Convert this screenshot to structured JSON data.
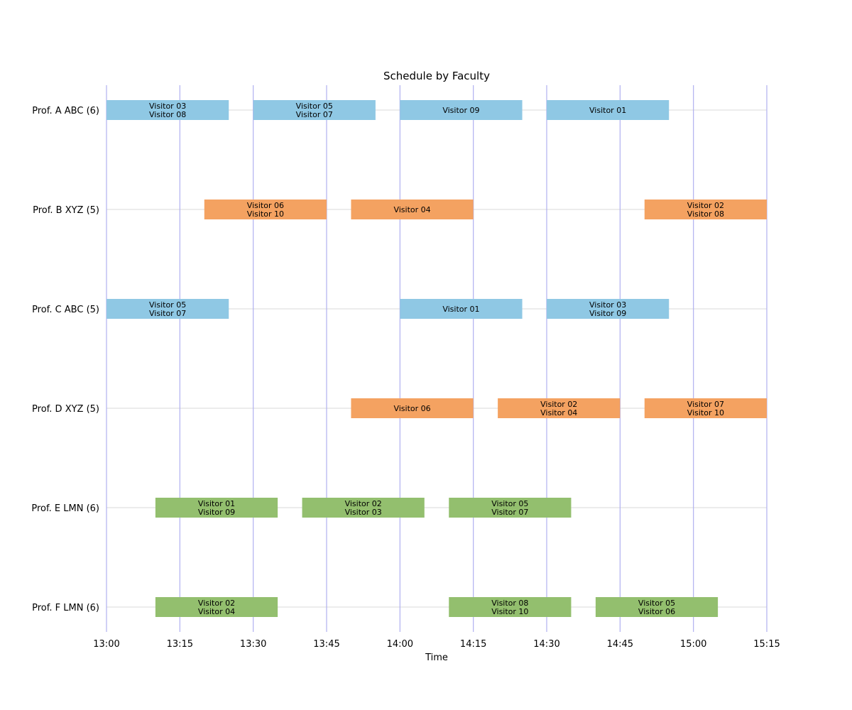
{
  "chart_data": {
    "type": "gantt",
    "title": "Schedule by Faculty",
    "xlabel": "Time",
    "ylabel": "",
    "x_ticks": [
      "13:00",
      "13:15",
      "13:30",
      "13:45",
      "14:00",
      "14:15",
      "14:30",
      "14:45",
      "15:00",
      "15:15"
    ],
    "xlim": [
      "13:00",
      "15:15"
    ],
    "grid": {
      "vertical_color": "#b0b0f0",
      "horizontal_color": "#d9d9d9"
    },
    "faculty": [
      {
        "label": "Prof. A ABC (6)",
        "color": "#8fc8e4",
        "meetings": [
          {
            "start": "13:00",
            "end": "13:25",
            "visitors": [
              "Visitor 03",
              "Visitor 08"
            ]
          },
          {
            "start": "13:30",
            "end": "13:55",
            "visitors": [
              "Visitor 05",
              "Visitor 07"
            ]
          },
          {
            "start": "14:00",
            "end": "14:25",
            "visitors": [
              "Visitor 09"
            ]
          },
          {
            "start": "14:30",
            "end": "14:55",
            "visitors": [
              "Visitor 01"
            ]
          }
        ]
      },
      {
        "label": "Prof. B XYZ (5)",
        "color": "#f4a261",
        "meetings": [
          {
            "start": "13:20",
            "end": "13:45",
            "visitors": [
              "Visitor 06",
              "Visitor 10"
            ]
          },
          {
            "start": "13:50",
            "end": "14:15",
            "visitors": [
              "Visitor 04"
            ]
          },
          {
            "start": "14:50",
            "end": "15:15",
            "visitors": [
              "Visitor 02",
              "Visitor 08"
            ]
          }
        ]
      },
      {
        "label": "Prof. C ABC (5)",
        "color": "#8fc8e4",
        "meetings": [
          {
            "start": "13:00",
            "end": "13:25",
            "visitors": [
              "Visitor 05",
              "Visitor 07"
            ]
          },
          {
            "start": "14:00",
            "end": "14:25",
            "visitors": [
              "Visitor 01"
            ]
          },
          {
            "start": "14:30",
            "end": "14:55",
            "visitors": [
              "Visitor 03",
              "Visitor 09"
            ]
          }
        ]
      },
      {
        "label": "Prof. D XYZ (5)",
        "color": "#f4a261",
        "meetings": [
          {
            "start": "13:50",
            "end": "14:15",
            "visitors": [
              "Visitor 06"
            ]
          },
          {
            "start": "14:20",
            "end": "14:45",
            "visitors": [
              "Visitor 02",
              "Visitor 04"
            ]
          },
          {
            "start": "14:50",
            "end": "15:15",
            "visitors": [
              "Visitor 07",
              "Visitor 10"
            ]
          }
        ]
      },
      {
        "label": "Prof. E LMN (6)",
        "color": "#93bf6e",
        "meetings": [
          {
            "start": "13:10",
            "end": "13:35",
            "visitors": [
              "Visitor 01",
              "Visitor 09"
            ]
          },
          {
            "start": "13:40",
            "end": "14:05",
            "visitors": [
              "Visitor 02",
              "Visitor 03"
            ]
          },
          {
            "start": "14:10",
            "end": "14:35",
            "visitors": [
              "Visitor 05",
              "Visitor 07"
            ]
          }
        ]
      },
      {
        "label": "Prof. F LMN (6)",
        "color": "#93bf6e",
        "meetings": [
          {
            "start": "13:10",
            "end": "13:35",
            "visitors": [
              "Visitor 02",
              "Visitor 04"
            ]
          },
          {
            "start": "14:10",
            "end": "14:35",
            "visitors": [
              "Visitor 08",
              "Visitor 10"
            ]
          },
          {
            "start": "14:40",
            "end": "15:05",
            "visitors": [
              "Visitor 05",
              "Visitor 06"
            ]
          }
        ]
      }
    ]
  }
}
